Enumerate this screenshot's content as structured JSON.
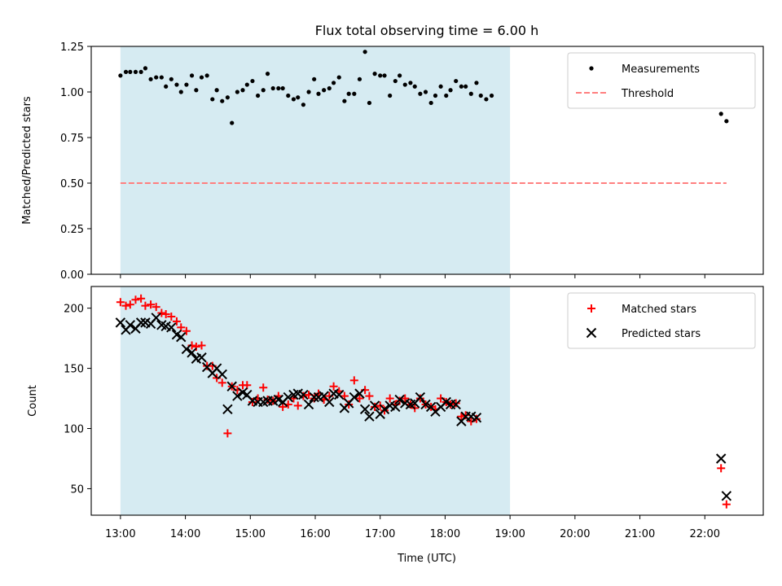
{
  "figure": {
    "title": "Flux total observing time = 6.00 h",
    "xlabel": "Time (UTC)"
  },
  "chart_data": [
    {
      "type": "scatter",
      "ylabel": "Matched/Predicted stars",
      "xlim": [
        "12:33",
        "22:54"
      ],
      "ylim": [
        0,
        1.25
      ],
      "yticks": [
        "0.00",
        "0.25",
        "0.50",
        "0.75",
        "1.00",
        "1.25"
      ],
      "xticks": [
        "13:00",
        "14:00",
        "15:00",
        "16:00",
        "17:00",
        "18:00",
        "19:00",
        "20:00",
        "21:00",
        "22:00"
      ],
      "observing_window": {
        "start": "13:00",
        "end": "19:00",
        "color": "#add8e6"
      },
      "legend": {
        "placement": "top-right",
        "entries": [
          "Measurements",
          "Threshold"
        ]
      },
      "grid": false,
      "series": [
        {
          "name": "Measurements",
          "marker": "dot",
          "color": "#000000",
          "points": [
            [
              "13:00",
              1.09
            ],
            [
              "13:05",
              1.11
            ],
            [
              "13:09",
              1.11
            ],
            [
              "13:14",
              1.11
            ],
            [
              "13:19",
              1.11
            ],
            [
              "13:23",
              1.13
            ],
            [
              "13:28",
              1.07
            ],
            [
              "13:33",
              1.08
            ],
            [
              "13:38",
              1.08
            ],
            [
              "13:42",
              1.03
            ],
            [
              "13:47",
              1.07
            ],
            [
              "13:52",
              1.04
            ],
            [
              "13:56",
              1.0
            ],
            [
              "14:01",
              1.04
            ],
            [
              "14:06",
              1.09
            ],
            [
              "14:10",
              1.01
            ],
            [
              "14:15",
              1.08
            ],
            [
              "14:20",
              1.09
            ],
            [
              "14:25",
              0.96
            ],
            [
              "14:29",
              1.01
            ],
            [
              "14:34",
              0.95
            ],
            [
              "14:39",
              0.97
            ],
            [
              "14:43",
              0.83
            ],
            [
              "14:48",
              1.0
            ],
            [
              "14:53",
              1.01
            ],
            [
              "14:57",
              1.04
            ],
            [
              "15:02",
              1.06
            ],
            [
              "15:07",
              0.98
            ],
            [
              "15:12",
              1.01
            ],
            [
              "15:16",
              1.1
            ],
            [
              "15:21",
              1.02
            ],
            [
              "15:26",
              1.02
            ],
            [
              "15:30",
              1.02
            ],
            [
              "15:35",
              0.98
            ],
            [
              "15:40",
              0.96
            ],
            [
              "15:44",
              0.97
            ],
            [
              "15:49",
              0.93
            ],
            [
              "15:54",
              1.0
            ],
            [
              "15:59",
              1.07
            ],
            [
              "16:03",
              0.99
            ],
            [
              "16:08",
              1.01
            ],
            [
              "16:13",
              1.02
            ],
            [
              "16:17",
              1.05
            ],
            [
              "16:22",
              1.08
            ],
            [
              "16:27",
              0.95
            ],
            [
              "16:31",
              0.99
            ],
            [
              "16:36",
              0.99
            ],
            [
              "16:41",
              1.07
            ],
            [
              "16:46",
              1.22
            ],
            [
              "16:50",
              0.94
            ],
            [
              "16:55",
              1.1
            ],
            [
              "17:00",
              1.09
            ],
            [
              "17:04",
              1.09
            ],
            [
              "17:09",
              0.98
            ],
            [
              "17:14",
              1.06
            ],
            [
              "17:18",
              1.09
            ],
            [
              "17:23",
              1.04
            ],
            [
              "17:28",
              1.05
            ],
            [
              "17:32",
              1.03
            ],
            [
              "17:37",
              0.99
            ],
            [
              "17:42",
              1.0
            ],
            [
              "17:47",
              0.94
            ],
            [
              "17:51",
              0.98
            ],
            [
              "17:56",
              1.03
            ],
            [
              "18:01",
              0.98
            ],
            [
              "18:05",
              1.01
            ],
            [
              "18:10",
              1.06
            ],
            [
              "18:15",
              1.03
            ],
            [
              "18:19",
              1.03
            ],
            [
              "18:24",
              0.99
            ],
            [
              "18:29",
              1.05
            ],
            [
              "18:33",
              0.98
            ],
            [
              "18:38",
              0.96
            ],
            [
              "18:43",
              0.98
            ],
            [
              "22:15",
              0.88
            ],
            [
              "22:20",
              0.84
            ]
          ]
        },
        {
          "name": "Threshold",
          "marker": "dashed-line",
          "color": "#ff7f7f",
          "points": [
            [
              "13:00",
              0.5
            ],
            [
              "22:20",
              0.5
            ]
          ]
        }
      ]
    },
    {
      "type": "scatter",
      "ylabel": "Count",
      "xlim": [
        "12:33",
        "22:54"
      ],
      "ylim": [
        28,
        218
      ],
      "yticks": [
        "50",
        "100",
        "150",
        "200"
      ],
      "xticks": [
        "13:00",
        "14:00",
        "15:00",
        "16:00",
        "17:00",
        "18:00",
        "19:00",
        "20:00",
        "21:00",
        "22:00"
      ],
      "observing_window": {
        "start": "13:00",
        "end": "19:00",
        "color": "#add8e6"
      },
      "legend": {
        "placement": "top-right",
        "entries": [
          "Matched stars",
          "Predicted stars"
        ]
      },
      "grid": false,
      "series": [
        {
          "name": "Matched stars",
          "marker": "plus",
          "color": "#ff0000",
          "points": [
            [
              "13:00",
              205
            ],
            [
              "13:05",
              202
            ],
            [
              "13:09",
              203
            ],
            [
              "13:14",
              207
            ],
            [
              "13:19",
              208
            ],
            [
              "13:23",
              202
            ],
            [
              "13:28",
              203
            ],
            [
              "13:33",
              201
            ],
            [
              "13:38",
              196
            ],
            [
              "13:42",
              195
            ],
            [
              "13:47",
              193
            ],
            [
              "13:52",
              189
            ],
            [
              "13:56",
              184
            ],
            [
              "14:01",
              181
            ],
            [
              "14:06",
              169
            ],
            [
              "14:10",
              168
            ],
            [
              "14:15",
              169
            ],
            [
              "14:20",
              152
            ],
            [
              "14:25",
              152
            ],
            [
              "14:29",
              142
            ],
            [
              "14:34",
              138
            ],
            [
              "14:39",
              96
            ],
            [
              "14:43",
              135
            ],
            [
              "14:48",
              132
            ],
            [
              "14:53",
              136
            ],
            [
              "14:57",
              136
            ],
            [
              "15:02",
              122
            ],
            [
              "15:07",
              125
            ],
            [
              "15:12",
              134
            ],
            [
              "15:16",
              124
            ],
            [
              "15:21",
              123
            ],
            [
              "15:26",
              127
            ],
            [
              "15:30",
              118
            ],
            [
              "15:35",
              120
            ],
            [
              "15:40",
              125
            ],
            [
              "15:44",
              119
            ],
            [
              "15:49",
              127
            ],
            [
              "15:54",
              128
            ],
            [
              "15:59",
              125
            ],
            [
              "16:03",
              129
            ],
            [
              "16:08",
              124
            ],
            [
              "16:13",
              127
            ],
            [
              "16:17",
              135
            ],
            [
              "16:22",
              131
            ],
            [
              "16:27",
              127
            ],
            [
              "16:31",
              120
            ],
            [
              "16:36",
              140
            ],
            [
              "16:41",
              125
            ],
            [
              "16:46",
              132
            ],
            [
              "16:50",
              127
            ],
            [
              "16:55",
              118
            ],
            [
              "17:00",
              119
            ],
            [
              "17:04",
              115
            ],
            [
              "17:09",
              125
            ],
            [
              "17:14",
              120
            ],
            [
              "17:18",
              123
            ],
            [
              "17:23",
              125
            ],
            [
              "17:28",
              120
            ],
            [
              "17:32",
              117
            ],
            [
              "17:37",
              125
            ],
            [
              "17:42",
              120
            ],
            [
              "17:47",
              118
            ],
            [
              "17:51",
              116
            ],
            [
              "17:56",
              125
            ],
            [
              "18:01",
              122
            ],
            [
              "18:05",
              120
            ],
            [
              "18:10",
              121
            ],
            [
              "18:15",
              110
            ],
            [
              "18:19",
              111
            ],
            [
              "18:24",
              106
            ],
            [
              "18:29",
              108
            ],
            [
              "22:15",
              67
            ],
            [
              "22:20",
              37
            ]
          ]
        },
        {
          "name": "Predicted stars",
          "marker": "x",
          "color": "#000000",
          "points": [
            [
              "13:00",
              188
            ],
            [
              "13:05",
              182
            ],
            [
              "13:09",
              186
            ],
            [
              "13:14",
              183
            ],
            [
              "13:19",
              188
            ],
            [
              "13:23",
              188
            ],
            [
              "13:28",
              187
            ],
            [
              "13:33",
              192
            ],
            [
              "13:38",
              186
            ],
            [
              "13:42",
              185
            ],
            [
              "13:47",
              184
            ],
            [
              "13:52",
              178
            ],
            [
              "13:56",
              176
            ],
            [
              "14:01",
              166
            ],
            [
              "14:06",
              163
            ],
            [
              "14:10",
              158
            ],
            [
              "14:15",
              159
            ],
            [
              "14:20",
              151
            ],
            [
              "14:25",
              146
            ],
            [
              "14:29",
              150
            ],
            [
              "14:34",
              145
            ],
            [
              "14:39",
              116
            ],
            [
              "14:43",
              135
            ],
            [
              "14:48",
              127
            ],
            [
              "14:53",
              130
            ],
            [
              "14:57",
              128
            ],
            [
              "15:02",
              123
            ],
            [
              "15:07",
              122
            ],
            [
              "15:12",
              122
            ],
            [
              "15:16",
              123
            ],
            [
              "15:21",
              123
            ],
            [
              "15:26",
              124
            ],
            [
              "15:30",
              122
            ],
            [
              "15:35",
              126
            ],
            [
              "15:40",
              128
            ],
            [
              "15:44",
              129
            ],
            [
              "15:49",
              128
            ],
            [
              "15:54",
              120
            ],
            [
              "15:59",
              126
            ],
            [
              "16:03",
              126
            ],
            [
              "16:08",
              127
            ],
            [
              "16:13",
              122
            ],
            [
              "16:17",
              129
            ],
            [
              "16:22",
              128
            ],
            [
              "16:27",
              117
            ],
            [
              "16:31",
              121
            ],
            [
              "16:36",
              126
            ],
            [
              "16:41",
              129
            ],
            [
              "16:46",
              116
            ],
            [
              "16:50",
              110
            ],
            [
              "16:55",
              119
            ],
            [
              "17:00",
              112
            ],
            [
              "17:04",
              116
            ],
            [
              "17:09",
              119
            ],
            [
              "17:14",
              118
            ],
            [
              "17:18",
              124
            ],
            [
              "17:23",
              121
            ],
            [
              "17:28",
              120
            ],
            [
              "17:32",
              121
            ],
            [
              "17:37",
              126
            ],
            [
              "17:42",
              120
            ],
            [
              "17:47",
              118
            ],
            [
              "17:51",
              114
            ],
            [
              "17:56",
              118
            ],
            [
              "18:01",
              122
            ],
            [
              "18:05",
              120
            ],
            [
              "18:10",
              120
            ],
            [
              "18:15",
              106
            ],
            [
              "18:19",
              110
            ],
            [
              "18:24",
              110
            ],
            [
              "18:29",
              109
            ],
            [
              "22:15",
              75
            ],
            [
              "22:20",
              44
            ]
          ]
        }
      ]
    }
  ]
}
